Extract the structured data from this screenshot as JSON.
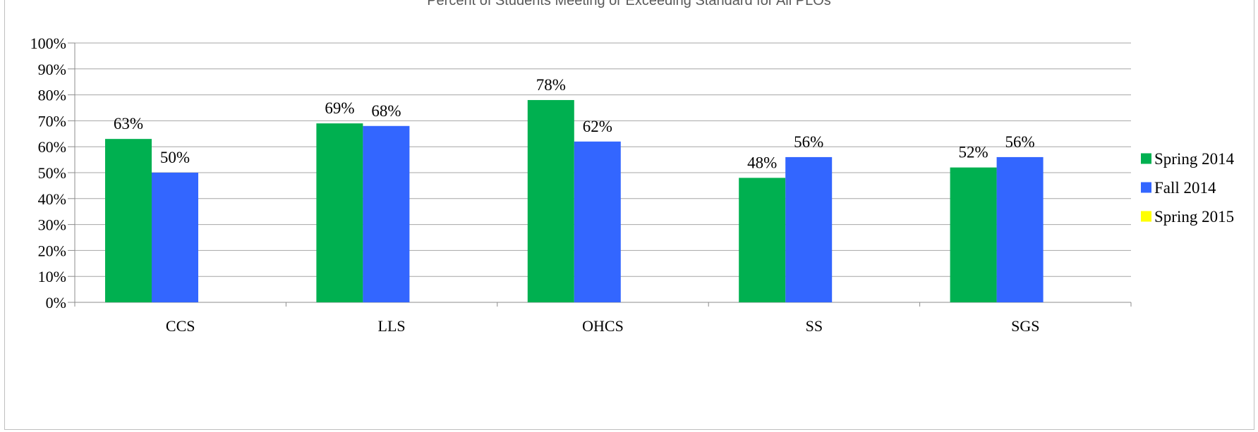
{
  "chart_data": {
    "type": "bar",
    "title": "Percent of Students Meeting or Exceeding Standard for All PLOs",
    "xlabel": "",
    "ylabel": "",
    "categories": [
      "CCS",
      "LLS",
      "OHCS",
      "SS",
      "SGS"
    ],
    "series": [
      {
        "name": "Spring 2014",
        "color": "#00b050",
        "values": [
          63,
          69,
          78,
          48,
          52
        ],
        "labels": [
          "63%",
          "69%",
          "78%",
          "48%",
          "52%"
        ]
      },
      {
        "name": "Fall 2014",
        "color": "#3366ff",
        "values": [
          50,
          68,
          62,
          56,
          56
        ],
        "labels": [
          "50%",
          "68%",
          "62%",
          "56%",
          "56%"
        ]
      },
      {
        "name": "Spring 2015",
        "color": "#ffff00",
        "values": [
          null,
          null,
          null,
          null,
          null
        ],
        "labels": [
          "",
          "",
          "",
          "",
          ""
        ]
      }
    ],
    "ylim": [
      0,
      100
    ],
    "yticks": [
      "0%",
      "10%",
      "20%",
      "30%",
      "40%",
      "50%",
      "60%",
      "70%",
      "80%",
      "90%",
      "100%"
    ],
    "grid": true,
    "legend_position": "right"
  }
}
